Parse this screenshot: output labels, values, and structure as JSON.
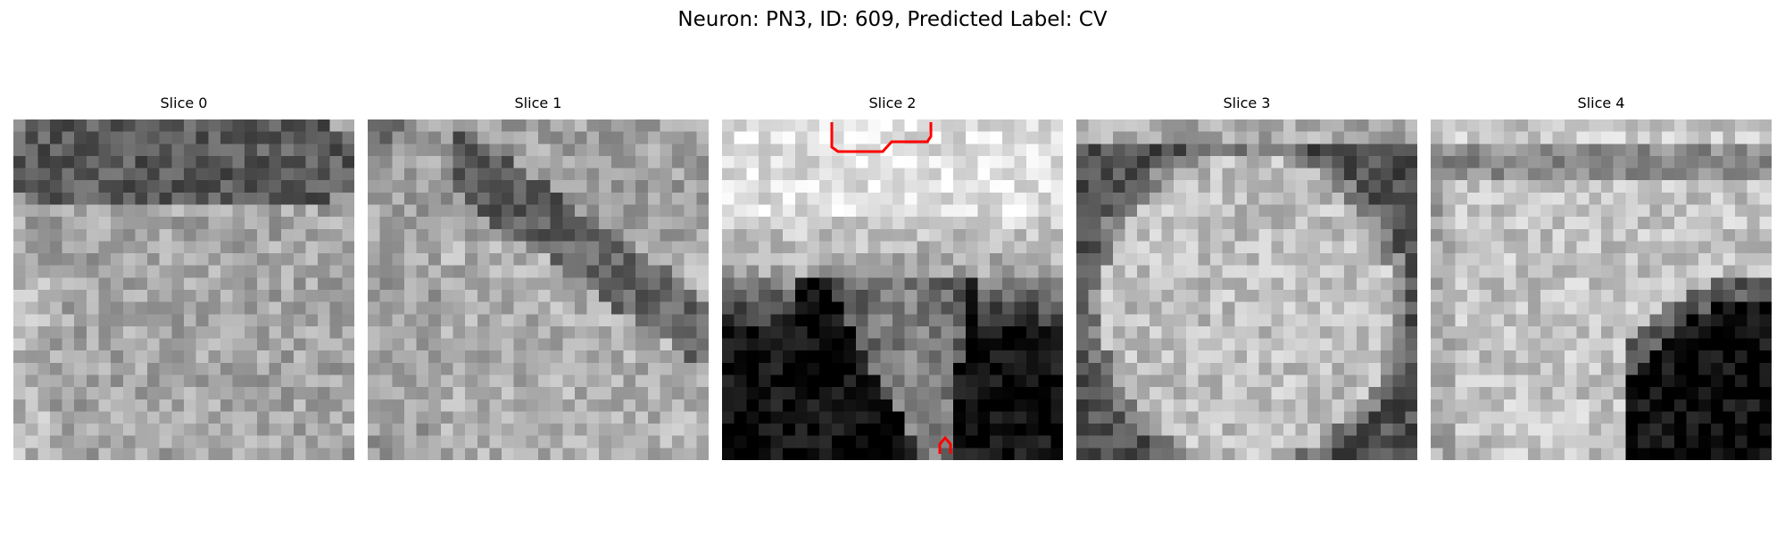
{
  "figure": {
    "title": "Neuron: PN3, ID: 609, Predicted Label: CV"
  },
  "slices": [
    {
      "title": "Slice 0",
      "pattern": "noisy-ring-top"
    },
    {
      "title": "Slice 1",
      "pattern": "noisy-diagonal-band"
    },
    {
      "title": "Slice 2",
      "pattern": "bright-top-dark-bottom-with-stalk"
    },
    {
      "title": "Slice 3",
      "pattern": "bright-disk-dark-border"
    },
    {
      "title": "Slice 4",
      "pattern": "bright-left-dark-bottom-right"
    }
  ],
  "colors": {
    "annotation": "#ff0000",
    "background": "#ffffff"
  }
}
